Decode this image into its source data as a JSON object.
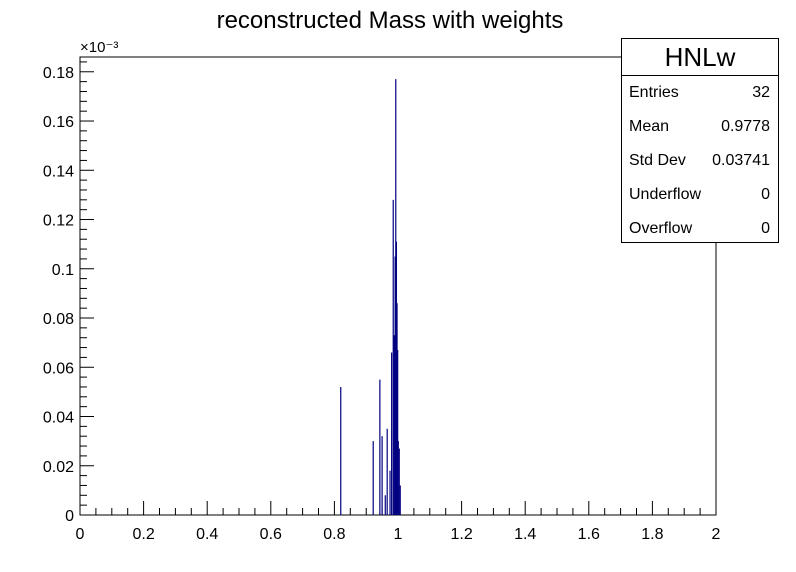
{
  "chart_data": {
    "type": "bar",
    "title": "reconstructed Mass with weights",
    "xlabel": "",
    "ylabel": "",
    "xlim": [
      0,
      2
    ],
    "ylim": [
      0,
      0.186
    ],
    "y_exponent_label": "×10⁻³",
    "x_ticks": [
      0,
      0.2,
      0.4,
      0.6,
      0.8,
      1,
      1.2,
      1.4,
      1.6,
      1.8,
      2
    ],
    "x_tick_labels": [
      "0",
      "0.2",
      "0.4",
      "0.6",
      "0.8",
      "1",
      "1.2",
      "1.4",
      "1.6",
      "1.8",
      "2"
    ],
    "y_ticks": [
      0,
      0.02,
      0.04,
      0.06,
      0.08,
      0.1,
      0.12,
      0.14,
      0.16,
      0.18
    ],
    "y_tick_labels": [
      "0",
      "0.02",
      "0.04",
      "0.06",
      "0.08",
      "0.1",
      "0.12",
      "0.14",
      "0.16",
      "0.18"
    ],
    "line_color": "#000080",
    "bins": [
      {
        "x": 0.82,
        "y": 0.052
      },
      {
        "x": 0.922,
        "y": 0.03
      },
      {
        "x": 0.943,
        "y": 0.055
      },
      {
        "x": 0.95,
        "y": 0.032
      },
      {
        "x": 0.96,
        "y": 0.008
      },
      {
        "x": 0.966,
        "y": 0.035
      },
      {
        "x": 0.975,
        "y": 0.018
      },
      {
        "x": 0.98,
        "y": 0.066
      },
      {
        "x": 0.985,
        "y": 0.128
      },
      {
        "x": 0.988,
        "y": 0.073
      },
      {
        "x": 0.991,
        "y": 0.105
      },
      {
        "x": 0.993,
        "y": 0.177
      },
      {
        "x": 0.995,
        "y": 0.111
      },
      {
        "x": 0.997,
        "y": 0.086
      },
      {
        "x": 0.999,
        "y": 0.067
      },
      {
        "x": 1.001,
        "y": 0.03
      },
      {
        "x": 1.004,
        "y": 0.027
      },
      {
        "x": 1.007,
        "y": 0.012
      }
    ]
  },
  "stats": {
    "title": "HNLw",
    "rows": [
      {
        "label": "Entries",
        "value": "32"
      },
      {
        "label": "Mean",
        "value": "0.9778"
      },
      {
        "label": "Std Dev",
        "value": "0.03741"
      },
      {
        "label": "Underflow",
        "value": "0"
      },
      {
        "label": "Overflow",
        "value": "0"
      }
    ]
  }
}
